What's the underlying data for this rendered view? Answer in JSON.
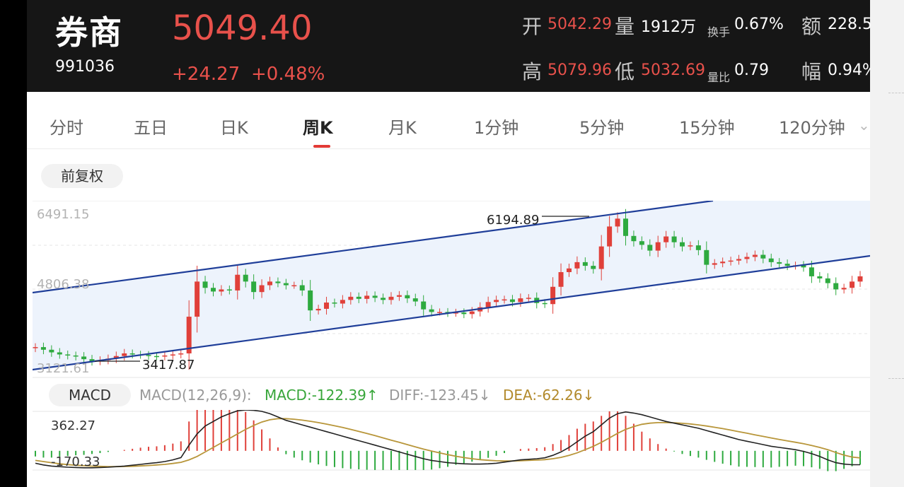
{
  "header": {
    "name": "券商",
    "code": "991036",
    "price": "5049.40",
    "change": "+24.27",
    "change_pct": "+0.48%",
    "open_label": "开",
    "open": "5042.29",
    "volume_label": "量",
    "volume": "1912万",
    "turnover_label": "换手",
    "turnover": "0.67%",
    "amount_label": "额",
    "amount": "228.5",
    "high_label": "高",
    "high": "5079.96",
    "low_label": "低",
    "low": "5032.69",
    "vol_ratio_label": "量比",
    "vol_ratio": "0.79",
    "amplitude_label": "幅",
    "amplitude": "0.94%"
  },
  "tabs": [
    "分时",
    "五日",
    "日K",
    "周K",
    "月K",
    "1分钟",
    "5分钟",
    "15分钟",
    "120分钟"
  ],
  "active_tab": "周K",
  "adjust_label": "前复权",
  "kline": {
    "axis_labels": [
      "6491.15",
      "4806.38",
      "3121.61"
    ],
    "max_label": "6194.89",
    "min_label": "3417.87"
  },
  "macd": {
    "button": "MACD",
    "params": "MACD(12,26,9):",
    "macd": "MACD:-122.39↑",
    "diff": "DIFF:-123.45↓",
    "dea": "DEA:-62.26↓",
    "axis_top": "362.27",
    "axis_bottom": "-170.33"
  },
  "chart_data": [
    {
      "type": "candlestick",
      "ylim": [
        3121.61,
        6491.15
      ],
      "closes": [
        3700,
        3650,
        3600,
        3560,
        3540,
        3520,
        3470,
        3430,
        3450,
        3480,
        3530,
        3580,
        3560,
        3550,
        3530,
        3520,
        3540,
        3560,
        3580,
        4280,
        4950,
        4830,
        4760,
        4800,
        4780,
        5080,
        4950,
        4750,
        4880,
        4950,
        4920,
        4880,
        4880,
        4780,
        4400,
        4430,
        4550,
        4530,
        4600,
        4660,
        4620,
        4680,
        4640,
        4600,
        4660,
        4690,
        4630,
        4570,
        4420,
        4370,
        4370,
        4350,
        4360,
        4330,
        4380,
        4460,
        4560,
        4600,
        4610,
        4560,
        4630,
        4640,
        4540,
        4520,
        4850,
        5130,
        5200,
        5320,
        5250,
        5190,
        5620,
        6000,
        6150,
        5820,
        5720,
        5650,
        5540,
        5700,
        5810,
        5700,
        5620,
        5640,
        5550,
        5270,
        5300,
        5330,
        5350,
        5380,
        5420,
        5460,
        5390,
        5320,
        5290,
        5250,
        5260,
        5220,
        5050,
        5010,
        4920,
        4800,
        4830,
        4950,
        5049.4
      ]
    },
    {
      "type": "line",
      "series": [
        {
          "name": "DIFF",
          "values": [
            -110,
            -125,
            -135,
            -140,
            -145,
            -148,
            -150,
            -150,
            -148,
            -145,
            -140,
            -135,
            -128,
            -120,
            -112,
            -105,
            -95,
            -80,
            -60,
            50,
            150,
            220,
            260,
            300,
            330,
            355,
            362,
            360,
            350,
            330,
            300,
            270,
            250,
            230,
            210,
            190,
            170,
            150,
            130,
            110,
            90,
            70,
            50,
            30,
            10,
            -10,
            -30,
            -50,
            -70,
            -85,
            -95,
            -105,
            -110,
            -115,
            -118,
            -118,
            -115,
            -110,
            -100,
            -90,
            -80,
            -75,
            -70,
            -62,
            -40,
            -10,
            30,
            80,
            130,
            170,
            230,
            290,
            330,
            345,
            335,
            320,
            300,
            280,
            260,
            245,
            230,
            215,
            200,
            180,
            160,
            140,
            120,
            100,
            85,
            70,
            55,
            40,
            30,
            20,
            10,
            -5,
            -25,
            -50,
            -80,
            -105,
            -118,
            -123.45,
            -123.45
          ]
        },
        {
          "name": "DEA",
          "values": [
            -85,
            -95,
            -105,
            -115,
            -122,
            -128,
            -132,
            -136,
            -138,
            -140,
            -140,
            -139,
            -137,
            -134,
            -130,
            -125,
            -120,
            -112,
            -102,
            -80,
            -50,
            -10,
            30,
            70,
            110,
            150,
            190,
            225,
            255,
            275,
            285,
            285,
            280,
            272,
            262,
            250,
            237,
            222,
            207,
            190,
            172,
            154,
            135,
            115,
            95,
            75,
            55,
            35,
            15,
            -2,
            -18,
            -34,
            -48,
            -60,
            -70,
            -78,
            -84,
            -88,
            -90,
            -90,
            -88,
            -85,
            -82,
            -78,
            -70,
            -58,
            -40,
            -18,
            10,
            40,
            75,
            115,
            155,
            190,
            215,
            235,
            245,
            250,
            250,
            248,
            244,
            238,
            230,
            220,
            209,
            197,
            184,
            170,
            156,
            142,
            128,
            114,
            101,
            88,
            76,
            63,
            48,
            30,
            10,
            -15,
            -38,
            -55,
            -62.26
          ]
        }
      ],
      "ylim": [
        -170.33,
        362.27
      ]
    }
  ]
}
